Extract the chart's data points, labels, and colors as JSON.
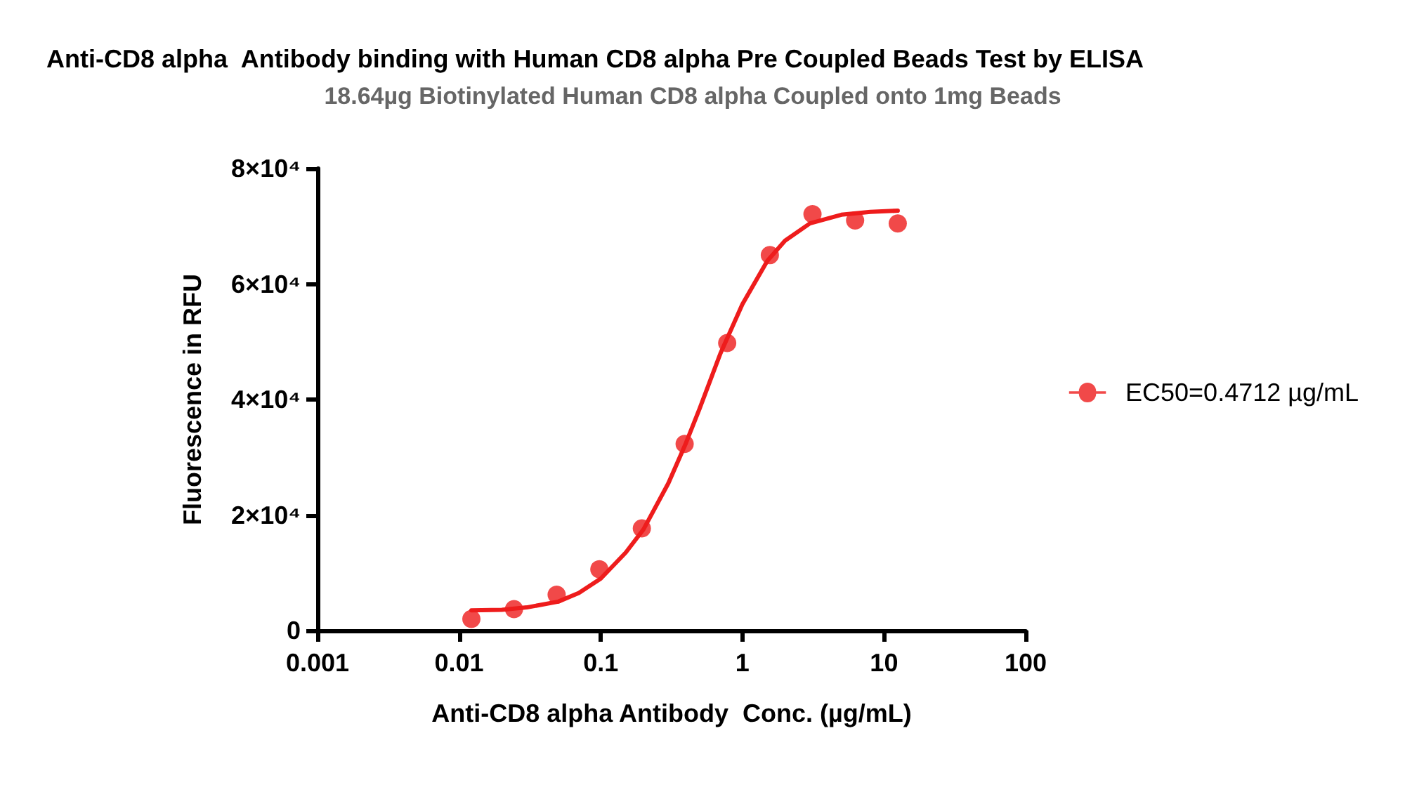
{
  "chart_data": {
    "type": "scatter",
    "title": "Anti-CD8 alpha  Antibody binding with Human CD8 alpha Pre Coupled Beads Test by ELISA",
    "subtitle": "18.64µg Biotinylated Human CD8 alpha Coupled onto 1mg Beads",
    "xlabel": "Anti-CD8 alpha Antibody  Conc. (µg/mL)",
    "ylabel": "Fluorescence in RFU",
    "log": "x",
    "xlim": [
      0.001,
      100
    ],
    "xticks": [
      0.001,
      0.01,
      0.1,
      1,
      10,
      100
    ],
    "ylim": [
      0,
      80000
    ],
    "yticks": [
      0,
      {
        "value": 20000,
        "label": "2×10⁴"
      },
      {
        "value": 40000,
        "label": "4×10⁴"
      },
      {
        "value": 60000,
        "label": "6×10⁴"
      },
      {
        "value": 80000,
        "label": "8×10⁴"
      }
    ],
    "grid": false,
    "legend": "right",
    "line_style": "solid",
    "series": [
      {
        "name": "EC50=0.4712 µg/mL",
        "type": "scatter",
        "marker": "circle",
        "color": "#ee1c1c",
        "x": [
          0.0122,
          0.0244,
          0.0488,
          0.0977,
          0.195,
          0.391,
          0.781,
          1.5625,
          3.125,
          6.25,
          12.5
        ],
        "values": [
          2000,
          3700,
          6200,
          10600,
          17700,
          32300,
          49800,
          65000,
          72100,
          71000,
          70500
        ]
      },
      {
        "type": "line",
        "marker": "none",
        "color": "#ee1c1c",
        "x": [
          0.0122,
          0.02,
          0.03,
          0.05,
          0.07,
          0.1,
          0.15,
          0.2,
          0.3,
          0.4,
          0.5,
          0.7,
          1,
          1.5,
          2,
          3,
          5,
          8,
          12.5
        ],
        "values": [
          3500,
          3600,
          4000,
          5000,
          6500,
          9000,
          13500,
          17500,
          25500,
          32500,
          38500,
          48000,
          56500,
          64000,
          67500,
          70500,
          72000,
          72500,
          72700
        ]
      }
    ]
  }
}
